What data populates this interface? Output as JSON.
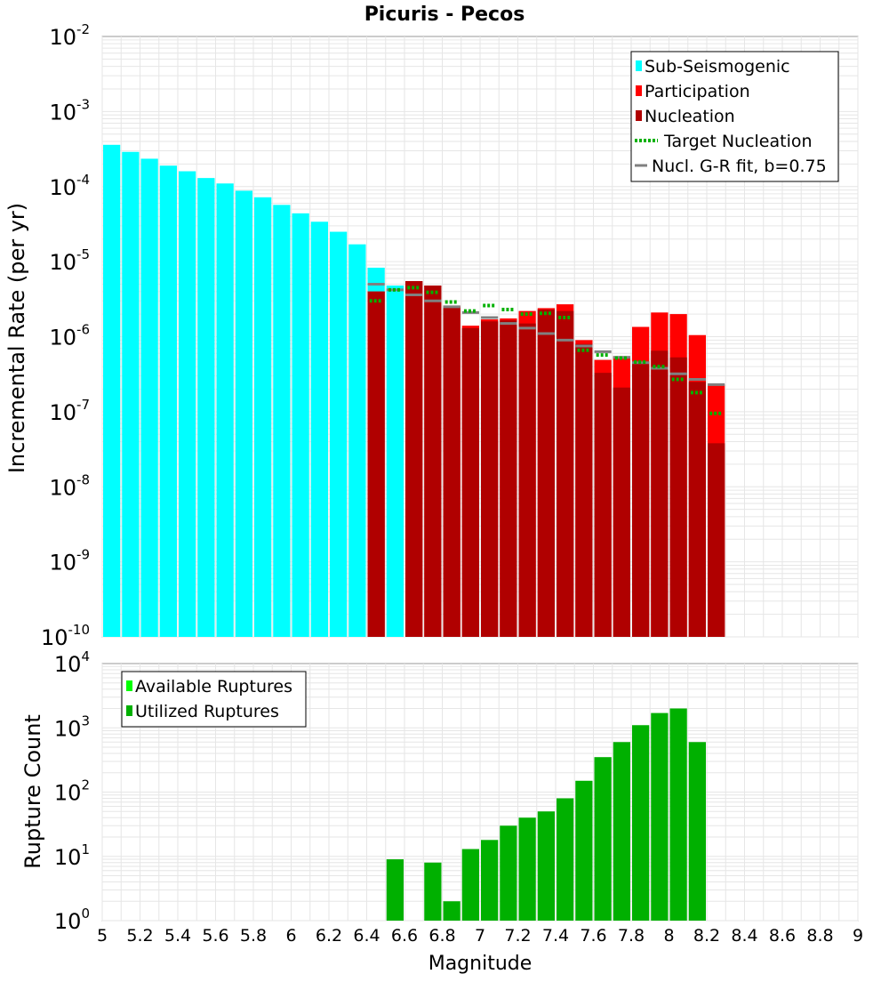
{
  "title": "Picuris - Pecos",
  "colors": {
    "sub_seismogenic": "#00ffff",
    "participation": "#ff0000",
    "nucleation": "#b00000",
    "target_nucleation": "#00b000",
    "gr_fit": "#808080",
    "available": "#00ff00",
    "utilized": "#00b000",
    "grid": "#e6e6e6"
  },
  "chart_data": [
    {
      "type": "bar",
      "ylabel": "Incremental Rate (per yr)",
      "xlabel": "",
      "yscale": "log",
      "ylim_exponents": [
        -10,
        -2
      ],
      "xlim": [
        5,
        9
      ],
      "bar_width": 0.1,
      "grid": true,
      "legend_position": "top-right",
      "legend": [
        {
          "label": "Sub-Seismogenic",
          "kind": "box",
          "color_key": "sub_seismogenic"
        },
        {
          "label": "Participation",
          "kind": "box",
          "color_key": "participation"
        },
        {
          "label": "Nucleation",
          "kind": "box",
          "color_key": "nucleation"
        },
        {
          "label": "Target Nucleation",
          "kind": "dotted",
          "color_key": "target_nucleation"
        },
        {
          "label": "Nucl. G-R fit, b=0.75",
          "kind": "line",
          "color_key": "gr_fit"
        }
      ],
      "sub_seismogenic": {
        "x": [
          5.05,
          5.15,
          5.25,
          5.35,
          5.45,
          5.55,
          5.65,
          5.75,
          5.85,
          5.95,
          6.05,
          6.15,
          6.25,
          6.35,
          6.45,
          6.55
        ],
        "values": [
          0.00036,
          0.00029,
          0.000235,
          0.00019,
          0.00016,
          0.00013,
          0.00011,
          8.8e-05,
          7.2e-05,
          5.7e-05,
          4.4e-05,
          3.4e-05,
          2.5e-05,
          1.7e-05,
          8.3e-06,
          4.8e-06
        ]
      },
      "participation": {
        "x": [
          6.45,
          6.65,
          6.75,
          6.85,
          6.95,
          7.05,
          7.15,
          7.25,
          7.35,
          7.45,
          7.55,
          7.65,
          7.75,
          7.85,
          7.95,
          8.05,
          8.15,
          8.25
        ],
        "values": [
          4e-06,
          5.5e-06,
          4.8e-06,
          2.6e-06,
          1.4e-06,
          1.7e-06,
          1.75e-06,
          2.2e-06,
          2.4e-06,
          2.7e-06,
          9e-07,
          4.9e-07,
          5.5e-07,
          1.35e-06,
          2.1e-06,
          2e-06,
          1.05e-06,
          2.3e-07
        ]
      },
      "nucleation": {
        "x": [
          6.45,
          6.65,
          6.75,
          6.85,
          6.95,
          7.05,
          7.15,
          7.25,
          7.35,
          7.45,
          7.55,
          7.65,
          7.75,
          7.85,
          7.95,
          8.05,
          8.15,
          8.25
        ],
        "values": [
          4e-06,
          5.5e-06,
          4.8e-06,
          2.5e-06,
          1.3e-06,
          1.6e-06,
          1.65e-06,
          1.5e-06,
          2.3e-06,
          2.2e-06,
          8e-07,
          3.3e-07,
          2.1e-07,
          4.7e-07,
          6.5e-07,
          5.3e-07,
          2.5e-07,
          3.8e-08
        ]
      },
      "target_nucleation": {
        "x": [
          6.45,
          6.55,
          6.65,
          6.75,
          6.85,
          6.95,
          7.05,
          7.15,
          7.25,
          7.35,
          7.45,
          7.55,
          7.65,
          7.75,
          7.85,
          7.95,
          8.05,
          8.15,
          8.25
        ],
        "values": [
          3e-06,
          4.2e-06,
          4.5e-06,
          3.9e-06,
          2.9e-06,
          2.2e-06,
          2.6e-06,
          2.3e-06,
          2e-06,
          2.05e-06,
          1.8e-06,
          6.6e-07,
          5.7e-07,
          5.2e-07,
          4.6e-07,
          4e-07,
          2.7e-07,
          1.8e-07,
          9.5e-08
        ]
      },
      "gr_fit": {
        "x": [
          6.45,
          6.55,
          6.65,
          6.75,
          6.85,
          6.95,
          7.05,
          7.15,
          7.25,
          7.35,
          7.45,
          7.55,
          7.65,
          7.75,
          7.85,
          7.95,
          8.05,
          8.15,
          8.25
        ],
        "values": [
          5e-06,
          4.2e-06,
          3.6e-06,
          3e-06,
          2.5e-06,
          2.1e-06,
          1.8e-06,
          1.5e-06,
          1.3e-06,
          1.1e-06,
          9e-07,
          7.5e-07,
          6.3e-07,
          5.3e-07,
          4.5e-07,
          3.8e-07,
          3.2e-07,
          2.7e-07,
          2.3e-07
        ]
      }
    },
    {
      "type": "bar",
      "ylabel": "Rupture Count",
      "xlabel": "Magnitude",
      "yscale": "log",
      "ylim_exponents": [
        0,
        4
      ],
      "xlim": [
        5,
        9
      ],
      "bar_width": 0.1,
      "grid": true,
      "legend_position": "top-left",
      "xticks": [
        "5",
        "5.2",
        "5.4",
        "5.6",
        "5.8",
        "6",
        "6.2",
        "6.4",
        "6.6",
        "6.8",
        "7",
        "7.2",
        "7.4",
        "7.6",
        "7.8",
        "8",
        "8.2",
        "8.4",
        "8.6",
        "8.8",
        "9"
      ],
      "legend": [
        {
          "label": "Available Ruptures",
          "kind": "box",
          "color_key": "available"
        },
        {
          "label": "Utilized Ruptures",
          "kind": "box",
          "color_key": "utilized"
        }
      ],
      "utilized": {
        "x": [
          6.55,
          6.75,
          6.85,
          6.95,
          7.05,
          7.15,
          7.25,
          7.35,
          7.45,
          7.55,
          7.65,
          7.75,
          7.85,
          7.95,
          8.05,
          8.15
        ],
        "values": [
          9,
          8,
          2,
          13,
          18,
          30,
          40,
          50,
          80,
          150,
          350,
          600,
          1100,
          1700,
          2000,
          600
        ]
      }
    }
  ]
}
